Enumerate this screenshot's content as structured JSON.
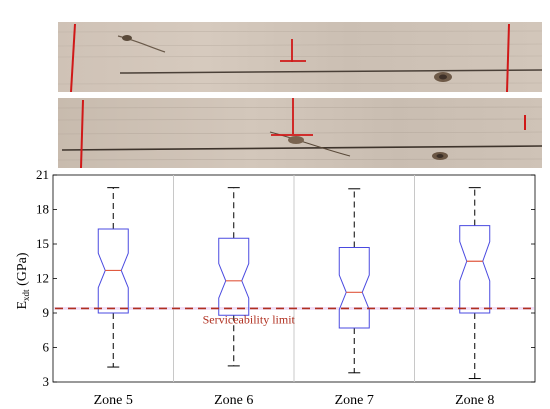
{
  "chart_data": {
    "type": "boxplot",
    "notched": true,
    "categories": [
      "Zone 5",
      "Zone 6",
      "Zone 7",
      "Zone 8"
    ],
    "boxes": [
      {
        "category": "Zone 5",
        "whisker_low": 4.3,
        "q1": 9.0,
        "median": 12.7,
        "q3": 16.3,
        "whisker_high": 19.9,
        "notch_low": 11.2,
        "notch_high": 14.2
      },
      {
        "category": "Zone 6",
        "whisker_low": 4.4,
        "q1": 8.8,
        "median": 11.8,
        "q3": 15.5,
        "whisker_high": 19.9,
        "notch_low": 10.3,
        "notch_high": 13.3
      },
      {
        "category": "Zone 7",
        "whisker_low": 3.8,
        "q1": 7.7,
        "median": 10.8,
        "q3": 14.7,
        "whisker_high": 19.8,
        "notch_low": 9.3,
        "notch_high": 12.3
      },
      {
        "category": "Zone 8",
        "whisker_low": 3.3,
        "q1": 9.0,
        "median": 13.5,
        "q3": 16.6,
        "whisker_high": 19.9,
        "notch_low": 11.8,
        "notch_high": 15.2
      }
    ],
    "ylabel": "E",
    "ylabel_subscript": "xdt",
    "ylabel_unit": " (GPa)",
    "ylim": [
      3,
      21
    ],
    "yticks": [
      3,
      6,
      9,
      12,
      15,
      18,
      21
    ],
    "reference_line": {
      "value": 9.4,
      "label": "Serviceability limit",
      "color": "#b03020"
    },
    "vertical_grid": true,
    "colors": {
      "box": "#4a4ae0",
      "median": "#e05a40",
      "whisker": "#000000",
      "limit_band": "#e8c8f0"
    }
  },
  "photos": [
    {
      "name": "timber-photo-top"
    },
    {
      "name": "timber-photo-bottom"
    }
  ]
}
